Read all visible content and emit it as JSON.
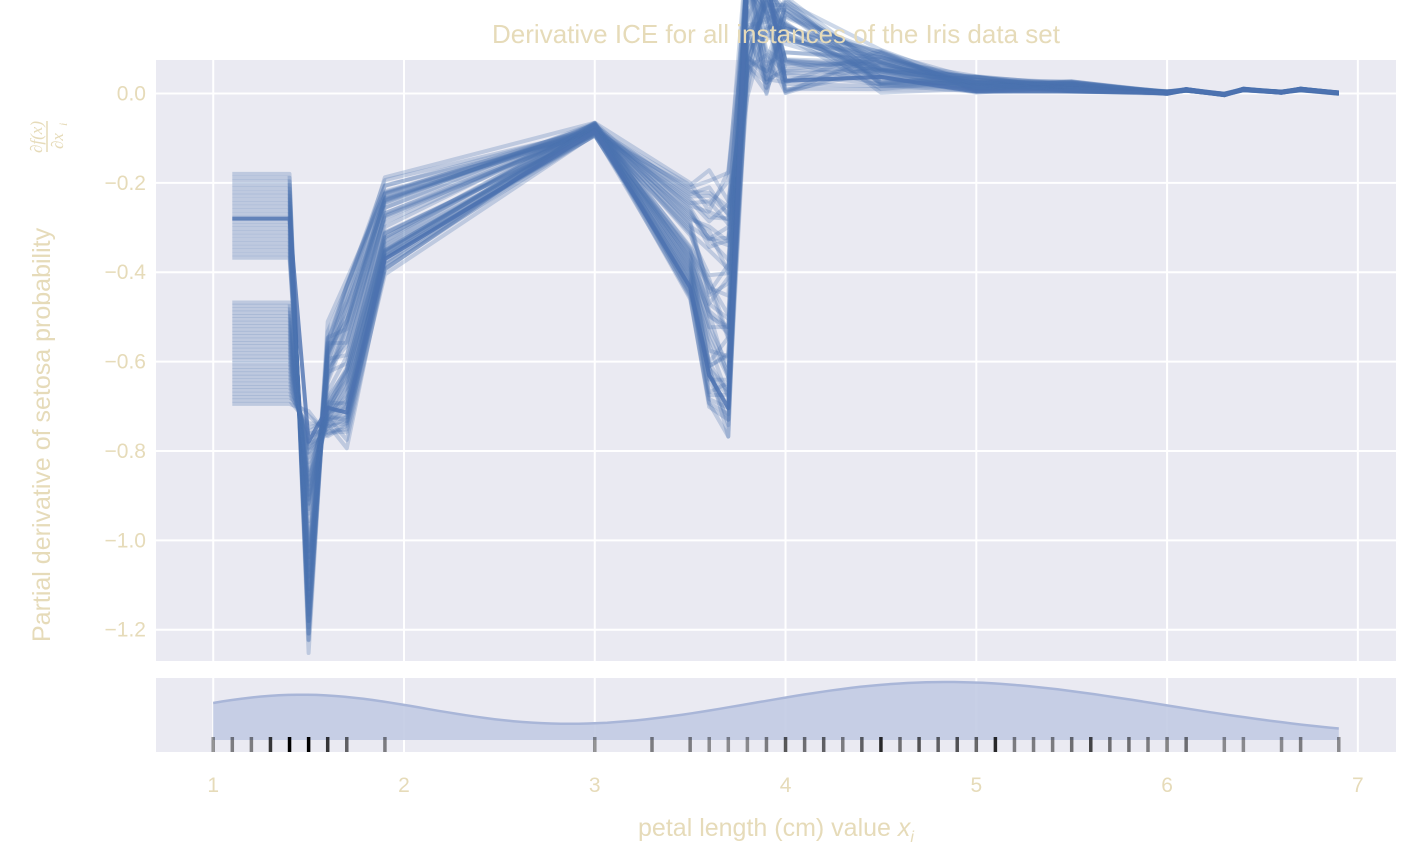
{
  "chart_data": {
    "type": "line",
    "title": "Derivative ICE for all instances of the Iris data set",
    "xlabel": "petal length (cm) value",
    "xlabel_var": "x",
    "xlabel_sub": "i",
    "ylabel": "Partial derivative of setosa probability",
    "ylabel_math_num": "∂f(x)",
    "ylabel_math_den": "∂x",
    "ylabel_math_sub": "i",
    "xlim": [
      0.7,
      7.2
    ],
    "ylim": [
      -1.27,
      0.075
    ],
    "xticks": [
      "1",
      "2",
      "3",
      "4",
      "5",
      "6",
      "7"
    ],
    "yticks": [
      "0.0",
      "−0.2",
      "−0.4",
      "−0.6",
      "−0.8",
      "−1.0",
      "−1.2"
    ],
    "grid": true,
    "x": [
      1.1,
      1.4,
      1.5,
      1.6,
      1.7,
      1.9,
      3.0,
      3.5,
      3.6,
      3.7,
      3.8,
      3.9,
      4.0,
      4.5,
      5.0,
      5.5,
      6.0,
      6.1,
      6.3,
      6.4,
      6.6,
      6.7,
      6.9
    ],
    "series_color": "#4c72b0",
    "series_template": {
      "low_group": {
        "start_range": [
          -0.18,
          -0.37
        ],
        "count": 24
      },
      "high_group": {
        "start_range": [
          -0.47,
          -0.7
        ],
        "count": 31
      }
    },
    "rug_x": [
      1.0,
      1.1,
      1.2,
      1.3,
      1.4,
      1.5,
      1.6,
      1.7,
      1.9,
      3.0,
      3.3,
      3.5,
      3.6,
      3.7,
      3.8,
      3.9,
      4.0,
      4.1,
      4.2,
      4.3,
      4.4,
      4.5,
      4.6,
      4.7,
      4.8,
      4.9,
      5.0,
      5.1,
      5.2,
      5.3,
      5.4,
      5.5,
      5.6,
      5.7,
      5.8,
      5.9,
      6.0,
      6.1,
      6.3,
      6.4,
      6.6,
      6.7,
      6.9
    ],
    "rug_weight": [
      1,
      2,
      2,
      7,
      13,
      13,
      7,
      4,
      2,
      1,
      2,
      2,
      1,
      1,
      1,
      2,
      5,
      3,
      4,
      2,
      4,
      8,
      3,
      5,
      4,
      5,
      4,
      8,
      2,
      2,
      2,
      3,
      6,
      3,
      3,
      2,
      2,
      3,
      1,
      1,
      1,
      2,
      1
    ],
    "kde_color": "#c2cbe3"
  }
}
